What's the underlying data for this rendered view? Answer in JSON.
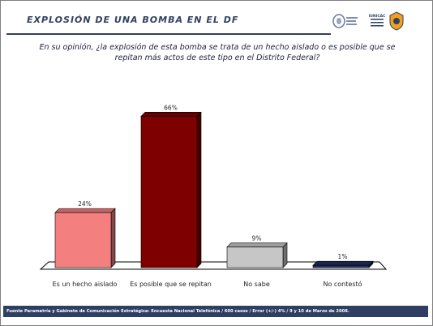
{
  "header": {
    "title": "EXPLOSIÓN DE UNA BOMBA EN EL DF",
    "logo_b_text": "GABINETE DE COMUNICACIÓN ESTRATÉGICA"
  },
  "question": "En su opinión, ¿la explosión de esta bomba se trata de un hecho aislado o es posible que se repitan más actos de este tipo en el Distrito Federal?",
  "chart_data": {
    "type": "bar",
    "categories": [
      "Es un hecho aislado",
      "Es posible que se repitan",
      "No sabe",
      "No contestó"
    ],
    "values": [
      24,
      66,
      9,
      1
    ],
    "value_labels": [
      "24%",
      "66%",
      "9%",
      "1%"
    ],
    "colors": [
      "#f47f7f",
      "#7f0000",
      "#c6c6c6",
      "#1f2f5f"
    ],
    "ylim": [
      0,
      70
    ],
    "grid": false,
    "legend": "none"
  },
  "footer": {
    "source": "Fuente Parametría y Gabinete de Comunicación Estratégica: Encuesta Nacional Telefónica / 600 casos / Error (+/-) 4% / 9 y 10 de Marzo de 2008."
  },
  "colors": {
    "title": "#31405f",
    "footer_bg": "#2f3f63"
  }
}
